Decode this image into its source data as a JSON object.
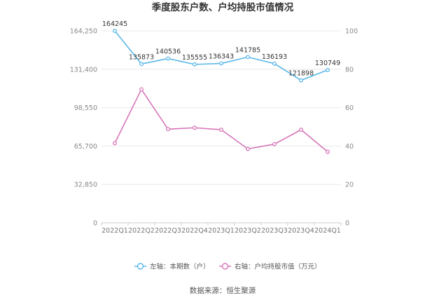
{
  "chart_data": {
    "type": "line",
    "title": "季度股东户数、户均持股市值情况",
    "categories": [
      "2022Q1",
      "2022Q2",
      "2022Q3",
      "2022Q4",
      "2023Q1",
      "2023Q2",
      "2023Q3",
      "2023Q4",
      "2024Q1"
    ],
    "y_left": {
      "ylim": [
        0,
        164250
      ],
      "ticks": [
        "0",
        "32,850",
        "65,700",
        "98,550",
        "131,400",
        "164,250"
      ]
    },
    "y_right": {
      "ylim": [
        0,
        100
      ],
      "ticks": [
        "0",
        "20",
        "40",
        "60",
        "80",
        "100"
      ]
    },
    "series": [
      {
        "name": "左轴：本期数（户）",
        "axis": "left",
        "color": "#5bb8e8",
        "values": [
          164245,
          135873,
          140536,
          135555,
          136343,
          141785,
          136193,
          121898,
          130749
        ],
        "labels": [
          "164245",
          "135873",
          "140536",
          "135555",
          "136343",
          "141785",
          "136193",
          "121898",
          "130749"
        ]
      },
      {
        "name": "右轴：户均持股市值（万元）",
        "axis": "right",
        "color": "#d776b8",
        "values": [
          41.5,
          69.5,
          48.8,
          49.5,
          48.5,
          38.5,
          41.0,
          48.5,
          37.0
        ]
      }
    ],
    "legend_position": "bottom",
    "grid": true,
    "source": "数据来源：恒生聚源"
  }
}
